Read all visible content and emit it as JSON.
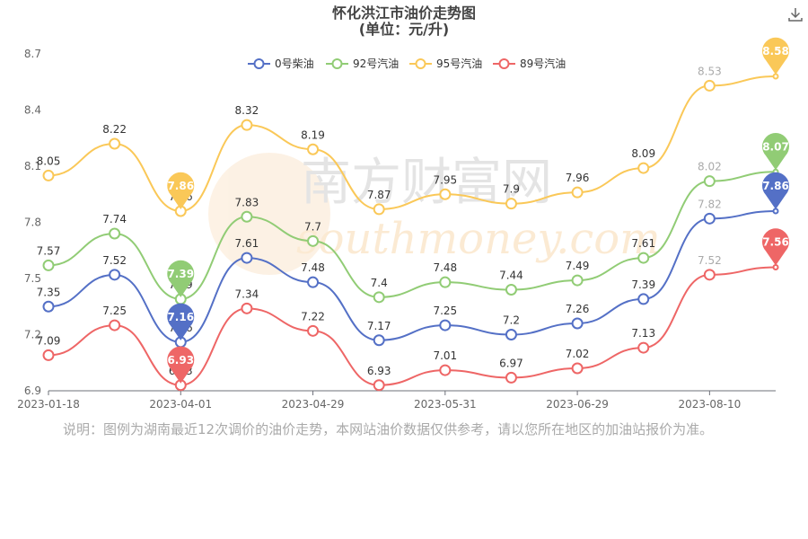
{
  "chart_data": {
    "type": "line",
    "title": "怀化洪江市油价走势图",
    "subtitle": "(单位：元/升)",
    "x": [
      "2023-01-18",
      "2023-02-21",
      "2023-04-01",
      "2023-04-07",
      "2023-04-29",
      "2023-05-12",
      "2023-05-31",
      "2023-06-14",
      "2023-06-29",
      "2023-07-13",
      "2023-08-10",
      "2023-08-24"
    ],
    "xticks": [
      "2023-01-18",
      "2023-04-01",
      "2023-04-29",
      "2023-05-31",
      "2023-06-29",
      "2023-08-10"
    ],
    "ylim": [
      6.9,
      8.7
    ],
    "yticks": [
      6.9,
      7.2,
      7.5,
      7.8,
      8.1,
      8.4,
      8.7
    ],
    "grid": false,
    "legend_position": "top-center",
    "series": [
      {
        "name": "0号柴油",
        "color": "#5470c6",
        "values": [
          7.35,
          7.52,
          7.16,
          7.61,
          7.48,
          7.17,
          7.25,
          7.2,
          7.26,
          7.39,
          7.82,
          7.86
        ]
      },
      {
        "name": "92号汽油",
        "color": "#91cc75",
        "values": [
          7.57,
          7.74,
          7.39,
          7.83,
          7.7,
          7.4,
          7.48,
          7.44,
          7.49,
          7.61,
          8.02,
          8.07
        ]
      },
      {
        "name": "95号汽油",
        "color": "#fac858",
        "values": [
          8.05,
          8.22,
          7.86,
          8.32,
          8.19,
          7.87,
          7.95,
          7.9,
          7.96,
          8.09,
          8.53,
          8.58
        ]
      },
      {
        "name": "89号汽油",
        "color": "#ee6666",
        "values": [
          7.09,
          7.25,
          6.93,
          7.34,
          7.22,
          6.93,
          7.01,
          6.97,
          7.02,
          7.13,
          7.52,
          7.56
        ]
      }
    ],
    "markers": [
      {
        "series": 0,
        "index": 2,
        "label": "7.16"
      },
      {
        "series": 1,
        "index": 2,
        "label": "7.39"
      },
      {
        "series": 2,
        "index": 2,
        "label": "7.86"
      },
      {
        "series": 3,
        "index": 2,
        "label": "6.93"
      },
      {
        "series": 0,
        "index": 11,
        "label": "7.86"
      },
      {
        "series": 1,
        "index": 11,
        "label": "8.07"
      },
      {
        "series": 2,
        "index": 11,
        "label": "8.58"
      },
      {
        "series": 3,
        "index": 11,
        "label": "7.56"
      }
    ]
  },
  "note": "说明：图例为湖南最近12次调价的油价走势，本网站油价数据仅供参考，请以您所在地区的加油站报价为准。",
  "watermark": {
    "cn": "南方财富网",
    "en": "southmoney.com"
  },
  "toolbar": {
    "download_icon": "download-icon"
  }
}
